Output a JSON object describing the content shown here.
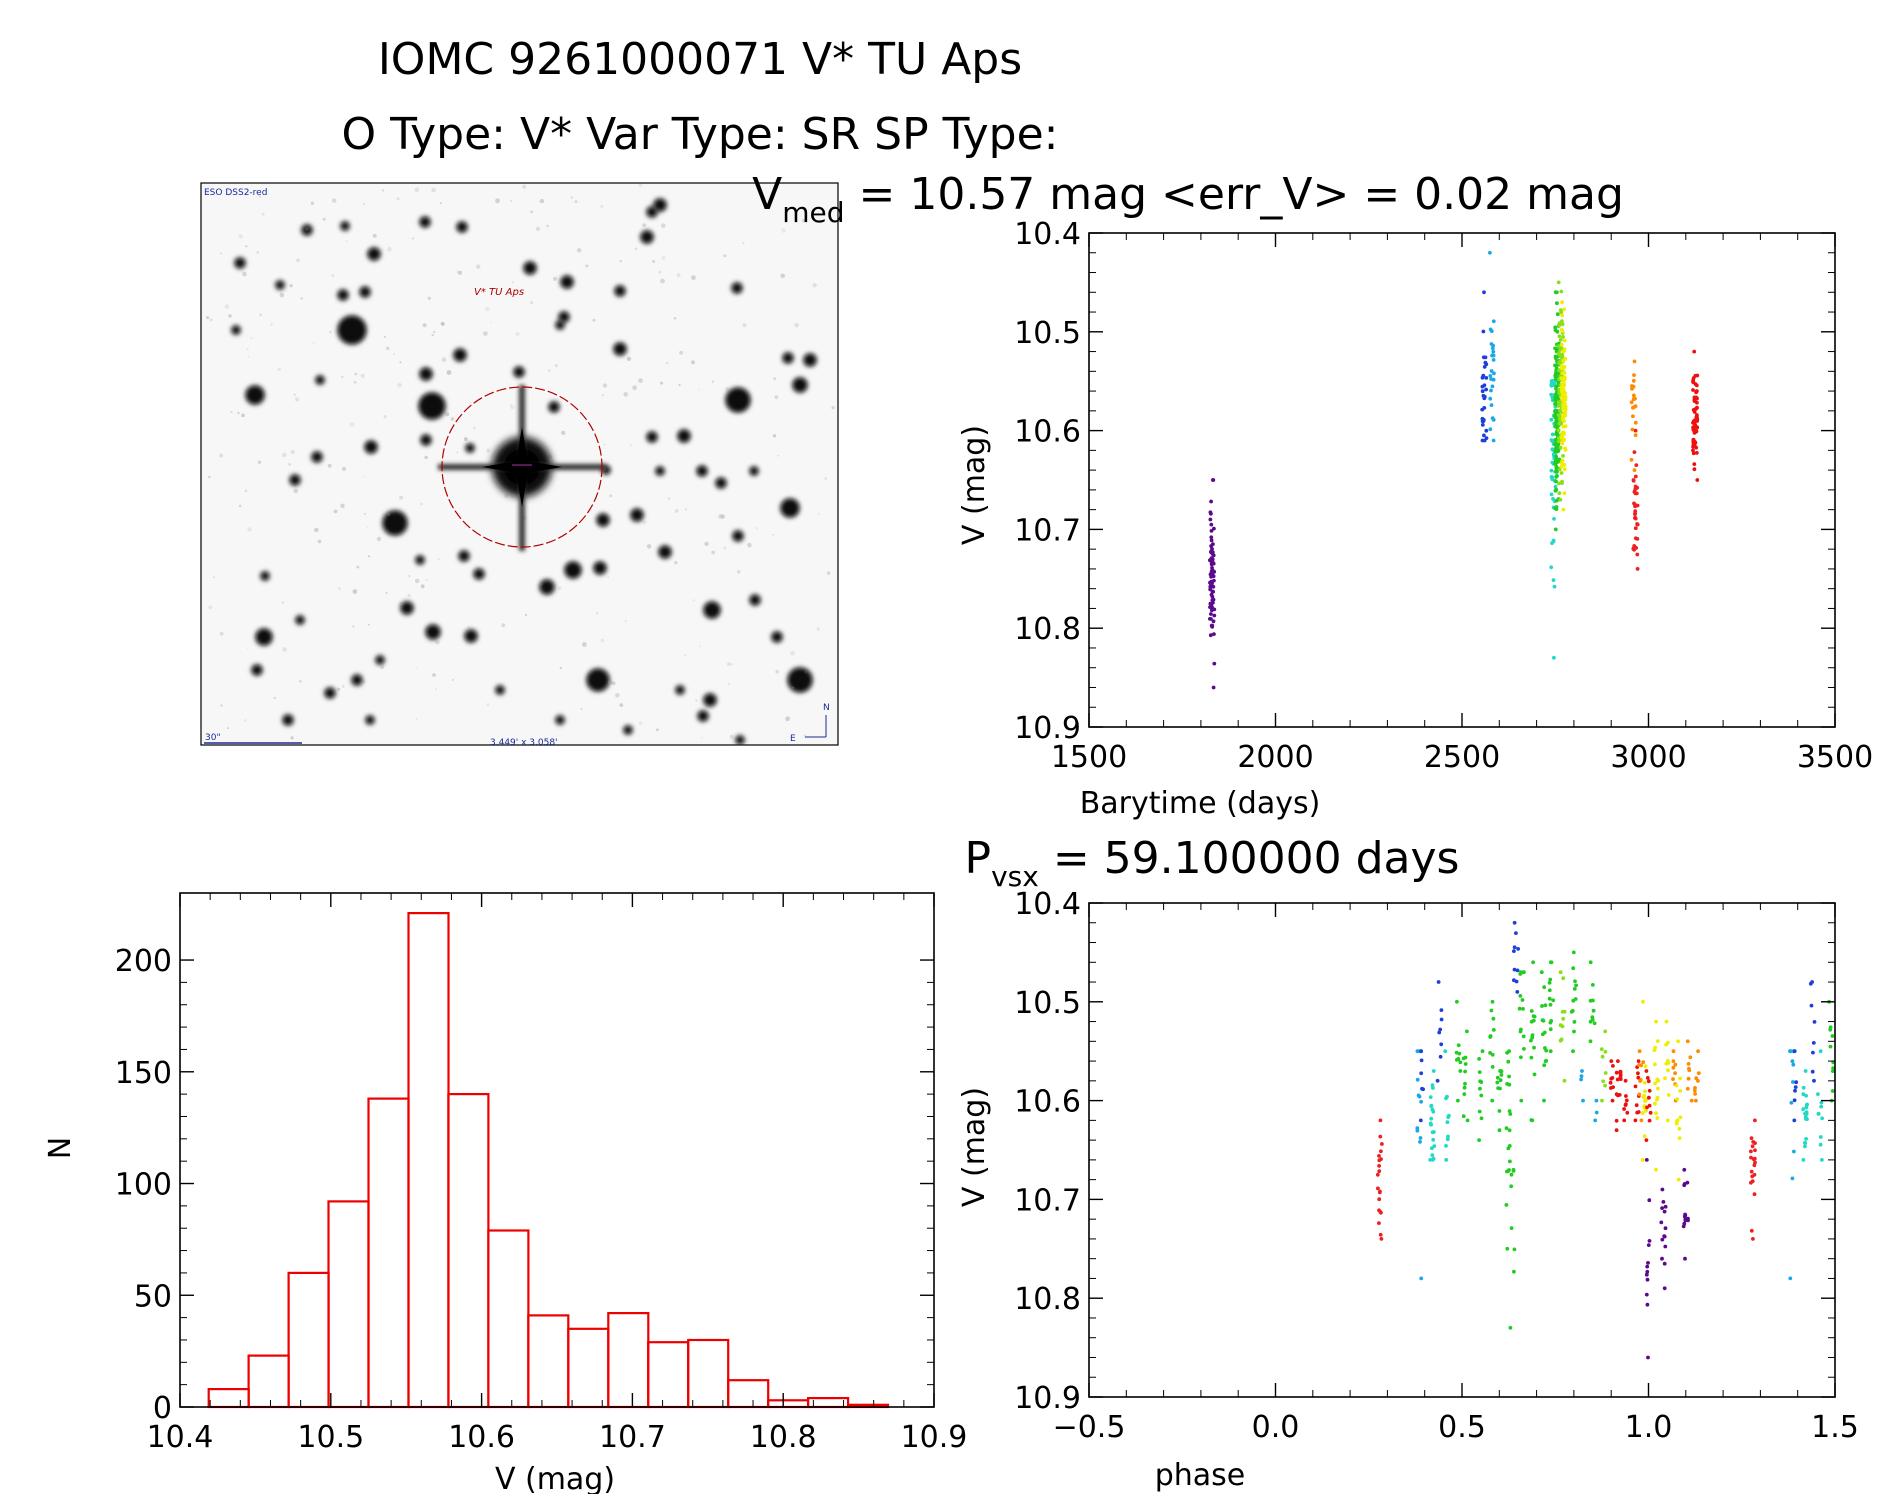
{
  "header": {
    "title_line1": "IOMC 9261000071   V* TU Aps",
    "title_line2": "O Type: V*  Var Type: SR  SP Type:"
  },
  "finder": {
    "survey_label": "ESO DSS2-red",
    "target_label": "V* TU Aps",
    "scale_label": "30\"",
    "fov_label": "3.449' x 3.058'",
    "north_label": "N",
    "east_label": "E"
  },
  "colors": {
    "histogram": "#ee0000",
    "axis": "#000000",
    "circle": "#b00000"
  },
  "chart_data": [
    {
      "id": "lightcurve",
      "type": "scatter",
      "title_parts": [
        "V",
        "med",
        " = 10.57 mag <err_V> = 0.02 mag"
      ],
      "xlabel": "Barytime (days)",
      "ylabel": "V (mag)",
      "xlim": [
        1500,
        3500
      ],
      "ylim": [
        10.4,
        10.9
      ],
      "y_inverted": true,
      "xticks": [
        1500,
        2000,
        2500,
        3000,
        3500
      ],
      "xtick_labels": [
        "1500",
        "2000",
        "2500",
        "3000",
        "3500"
      ],
      "yticks": [
        10.4,
        10.5,
        10.6,
        10.7,
        10.8,
        10.9
      ],
      "ytick_labels": [
        "10.4",
        "10.5",
        "10.6",
        "10.7",
        "10.8",
        "10.9"
      ],
      "groups": [
        {
          "x": 1830,
          "ymin": 10.65,
          "ymax": 10.86,
          "ycenter": 10.74,
          "color": "#5a0a8c",
          "n": 70
        },
        {
          "x": 2560,
          "ymin": 10.46,
          "ymax": 10.61,
          "ycenter": 10.57,
          "color": "#1f3fd8",
          "n": 30
        },
        {
          "x": 2580,
          "ymin": 10.42,
          "ymax": 10.61,
          "ycenter": 10.53,
          "color": "#1ca8e8",
          "n": 25
        },
        {
          "x": 2745,
          "ymin": 10.55,
          "ymax": 10.83,
          "ycenter": 10.62,
          "color": "#24d8c8",
          "n": 60
        },
        {
          "x": 2755,
          "ymin": 10.46,
          "ymax": 10.7,
          "ycenter": 10.58,
          "color": "#22cc22",
          "n": 160
        },
        {
          "x": 2765,
          "ymin": 10.45,
          "ymax": 10.67,
          "ycenter": 10.56,
          "color": "#88e01a",
          "n": 90
        },
        {
          "x": 2772,
          "ymin": 10.47,
          "ymax": 10.68,
          "ycenter": 10.56,
          "color": "#eeee00",
          "n": 90
        },
        {
          "x": 2960,
          "ymin": 10.53,
          "ymax": 10.64,
          "ycenter": 10.57,
          "color": "#ff8c00",
          "n": 20
        },
        {
          "x": 2965,
          "ymin": 10.6,
          "ymax": 10.74,
          "ycenter": 10.68,
          "color": "#ee2020",
          "n": 35
        },
        {
          "x": 3125,
          "ymin": 10.52,
          "ymax": 10.65,
          "ycenter": 10.59,
          "color": "#ee1010",
          "n": 70
        }
      ]
    },
    {
      "id": "histogram",
      "type": "bar",
      "xlabel": "V (mag)",
      "ylabel": "N",
      "xlim": [
        10.4,
        10.9
      ],
      "ylim": [
        0,
        230
      ],
      "xticks": [
        10.4,
        10.5,
        10.6,
        10.7,
        10.8,
        10.9
      ],
      "xtick_labels": [
        "10.4",
        "10.5",
        "10.6",
        "10.7",
        "10.8",
        "10.9"
      ],
      "yticks": [
        0,
        50,
        100,
        150,
        200
      ],
      "ytick_labels": [
        "0",
        "50",
        "100",
        "150",
        "200"
      ],
      "bin_start": 10.419,
      "bin_width": 0.0265,
      "values": [
        8,
        23,
        60,
        92,
        138,
        221,
        140,
        79,
        41,
        35,
        42,
        29,
        30,
        12,
        3,
        4,
        1
      ]
    },
    {
      "id": "phased",
      "type": "scatter",
      "title_parts": [
        "P",
        "vsx",
        " = 59.100000 days"
      ],
      "xlabel": "phase",
      "ylabel": "V (mag)",
      "xlim": [
        -0.5,
        1.5
      ],
      "ylim": [
        10.4,
        10.9
      ],
      "y_inverted": true,
      "xticks": [
        -0.5,
        0.0,
        0.5,
        1.0,
        1.5
      ],
      "xtick_labels": [
        "−0.5",
        "0.0",
        "0.5",
        "1.0",
        "1.5"
      ],
      "yticks": [
        10.4,
        10.5,
        10.6,
        10.7,
        10.8,
        10.9
      ],
      "ytick_labels": [
        "10.4",
        "10.5",
        "10.6",
        "10.7",
        "10.8",
        "10.9"
      ],
      "groups": [
        {
          "x": 0.28,
          "ymin": 10.62,
          "ymax": 10.74,
          "ycenter": 10.68,
          "color": "#ee2020",
          "n": 20
        },
        {
          "x": 0.385,
          "ymin": 10.55,
          "ymax": 10.78,
          "ycenter": 10.59,
          "color": "#1ca8e8",
          "n": 12
        },
        {
          "x": 0.395,
          "ymin": 10.55,
          "ymax": 10.62,
          "ycenter": 10.58,
          "color": "#1f3fd8",
          "n": 6
        },
        {
          "x": 0.42,
          "ymin": 10.57,
          "ymax": 10.66,
          "ycenter": 10.62,
          "color": "#24d8c8",
          "n": 20
        },
        {
          "x": 0.44,
          "ymin": 10.48,
          "ymax": 10.58,
          "ycenter": 10.53,
          "color": "#1f3fd8",
          "n": 8
        },
        {
          "x": 0.46,
          "ymin": 10.55,
          "ymax": 10.66,
          "ycenter": 10.61,
          "color": "#24d8c8",
          "n": 10
        },
        {
          "x": 0.49,
          "ymin": 10.5,
          "ymax": 10.6,
          "ycenter": 10.55,
          "color": "#22cc22",
          "n": 10
        },
        {
          "x": 0.51,
          "ymin": 10.53,
          "ymax": 10.62,
          "ycenter": 10.58,
          "color": "#22cc22",
          "n": 10
        },
        {
          "x": 0.55,
          "ymin": 10.55,
          "ymax": 10.64,
          "ycenter": 10.59,
          "color": "#22cc22",
          "n": 10
        },
        {
          "x": 0.58,
          "ymin": 10.5,
          "ymax": 10.6,
          "ycenter": 10.55,
          "color": "#22cc22",
          "n": 10
        },
        {
          "x": 0.6,
          "ymin": 10.57,
          "ymax": 10.63,
          "ycenter": 10.59,
          "color": "#22cc22",
          "n": 12
        },
        {
          "x": 0.625,
          "ymin": 10.55,
          "ymax": 10.75,
          "ycenter": 10.62,
          "color": "#22cc22",
          "n": 18
        },
        {
          "x": 0.635,
          "ymin": 10.67,
          "ymax": 10.83,
          "ycenter": 10.72,
          "color": "#22cc22",
          "n": 8
        },
        {
          "x": 0.645,
          "ymin": 10.42,
          "ymax": 10.49,
          "ycenter": 10.45,
          "color": "#1f3fd8",
          "n": 10
        },
        {
          "x": 0.66,
          "ymin": 10.47,
          "ymax": 10.6,
          "ycenter": 10.52,
          "color": "#22cc22",
          "n": 14
        },
        {
          "x": 0.69,
          "ymin": 10.46,
          "ymax": 10.62,
          "ycenter": 10.53,
          "color": "#22cc22",
          "n": 14
        },
        {
          "x": 0.72,
          "ymin": 10.47,
          "ymax": 10.6,
          "ycenter": 10.54,
          "color": "#22cc22",
          "n": 14
        },
        {
          "x": 0.74,
          "ymin": 10.46,
          "ymax": 10.55,
          "ycenter": 10.5,
          "color": "#22cc22",
          "n": 12
        },
        {
          "x": 0.77,
          "ymin": 10.47,
          "ymax": 10.58,
          "ycenter": 10.52,
          "color": "#88e01a",
          "n": 10
        },
        {
          "x": 0.8,
          "ymin": 10.45,
          "ymax": 10.55,
          "ycenter": 10.5,
          "color": "#22cc22",
          "n": 12
        },
        {
          "x": 0.82,
          "ymin": 10.57,
          "ymax": 10.6,
          "ycenter": 10.58,
          "color": "#1ca8e8",
          "n": 4
        },
        {
          "x": 0.85,
          "ymin": 10.46,
          "ymax": 10.54,
          "ycenter": 10.5,
          "color": "#22cc22",
          "n": 10
        },
        {
          "x": 0.86,
          "ymin": 10.6,
          "ymax": 10.62,
          "ycenter": 10.61,
          "color": "#1ca8e8",
          "n": 3
        },
        {
          "x": 0.88,
          "ymin": 10.53,
          "ymax": 10.6,
          "ycenter": 10.56,
          "color": "#88e01a",
          "n": 8
        },
        {
          "x": 0.9,
          "ymin": 10.56,
          "ymax": 10.6,
          "ycenter": 10.58,
          "color": "#ee1010",
          "n": 8
        },
        {
          "x": 0.92,
          "ymin": 10.56,
          "ymax": 10.63,
          "ycenter": 10.59,
          "color": "#ee1010",
          "n": 14
        },
        {
          "x": 0.94,
          "ymin": 10.58,
          "ymax": 10.62,
          "ycenter": 10.6,
          "color": "#ee1010",
          "n": 8
        },
        {
          "x": 0.97,
          "ymin": 10.56,
          "ymax": 10.62,
          "ycenter": 10.59,
          "color": "#ee1010",
          "n": 10
        },
        {
          "x": 0.98,
          "ymin": 10.55,
          "ymax": 10.62,
          "ycenter": 10.58,
          "color": "#ff8c00",
          "n": 8
        },
        {
          "x": 0.99,
          "ymin": 10.5,
          "ymax": 10.66,
          "ycenter": 10.58,
          "color": "#eeee00",
          "n": 14
        },
        {
          "x": 1.0,
          "ymin": 10.57,
          "ymax": 10.64,
          "ycenter": 10.6,
          "color": "#ee1010",
          "n": 10
        },
        {
          "x": 1.0,
          "ymin": 10.66,
          "ymax": 10.86,
          "ycenter": 10.77,
          "color": "#5a0a8c",
          "n": 12
        },
        {
          "x": 1.02,
          "ymin": 10.52,
          "ymax": 10.67,
          "ycenter": 10.59,
          "color": "#eeee00",
          "n": 16
        },
        {
          "x": 1.04,
          "ymin": 10.69,
          "ymax": 10.79,
          "ycenter": 10.74,
          "color": "#5a0a8c",
          "n": 14
        },
        {
          "x": 1.05,
          "ymin": 10.52,
          "ymax": 10.62,
          "ycenter": 10.57,
          "color": "#eeee00",
          "n": 10
        },
        {
          "x": 1.07,
          "ymin": 10.55,
          "ymax": 10.6,
          "ycenter": 10.57,
          "color": "#ff8c00",
          "n": 8
        },
        {
          "x": 1.08,
          "ymin": 10.54,
          "ymax": 10.68,
          "ycenter": 10.6,
          "color": "#eeee00",
          "n": 12
        },
        {
          "x": 1.1,
          "ymin": 10.67,
          "ymax": 10.76,
          "ycenter": 10.71,
          "color": "#5a0a8c",
          "n": 14
        },
        {
          "x": 1.11,
          "ymin": 10.54,
          "ymax": 10.6,
          "ycenter": 10.57,
          "color": "#ff8c00",
          "n": 8
        },
        {
          "x": 1.13,
          "ymin": 10.55,
          "ymax": 10.6,
          "ycenter": 10.58,
          "color": "#ff8c00",
          "n": 8
        },
        {
          "x": 1.28,
          "ymin": 10.62,
          "ymax": 10.74,
          "ycenter": 10.68,
          "color": "#ee2020",
          "n": 20
        },
        {
          "x": 1.385,
          "ymin": 10.55,
          "ymax": 10.78,
          "ycenter": 10.59,
          "color": "#1ca8e8",
          "n": 12
        },
        {
          "x": 1.395,
          "ymin": 10.55,
          "ymax": 10.62,
          "ycenter": 10.58,
          "color": "#1f3fd8",
          "n": 6
        },
        {
          "x": 1.42,
          "ymin": 10.57,
          "ymax": 10.66,
          "ycenter": 10.62,
          "color": "#24d8c8",
          "n": 20
        },
        {
          "x": 1.44,
          "ymin": 10.48,
          "ymax": 10.58,
          "ycenter": 10.53,
          "color": "#1f3fd8",
          "n": 8
        },
        {
          "x": 1.46,
          "ymin": 10.55,
          "ymax": 10.66,
          "ycenter": 10.61,
          "color": "#24d8c8",
          "n": 10
        },
        {
          "x": 1.49,
          "ymin": 10.5,
          "ymax": 10.6,
          "ycenter": 10.55,
          "color": "#22cc22",
          "n": 10
        }
      ]
    }
  ]
}
